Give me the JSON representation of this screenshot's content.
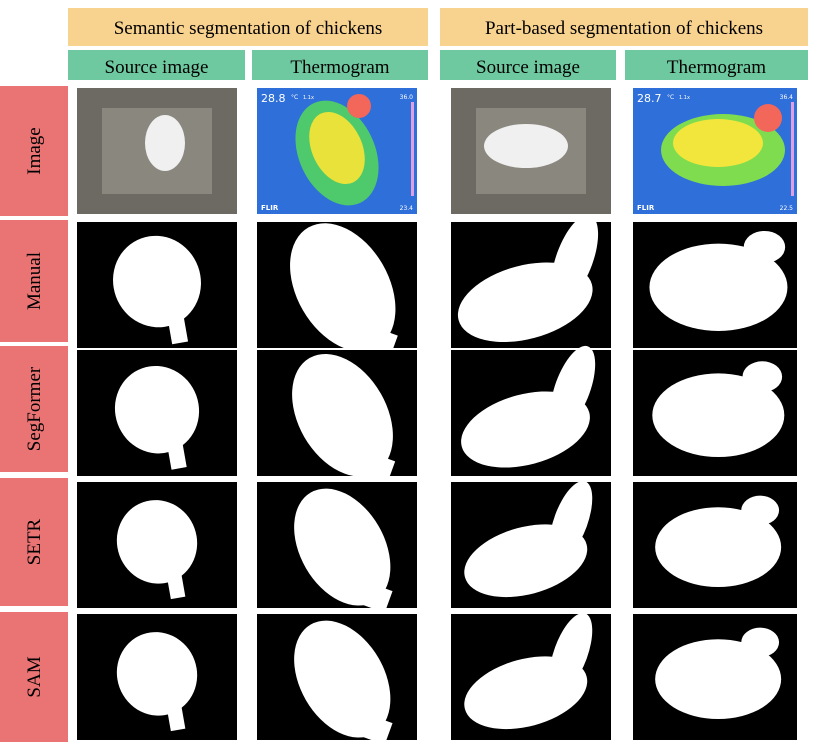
{
  "header": {
    "groups": [
      {
        "title": "Semantic segmentation of chickens",
        "columns": [
          "Source image",
          "Thermogram"
        ]
      },
      {
        "title": "Part-based segmentation of chickens",
        "columns": [
          "Source image",
          "Thermogram"
        ]
      }
    ]
  },
  "rows": [
    "Image",
    "Manual",
    "SegFormer",
    "SETR",
    "SAM"
  ],
  "thermograms": [
    {
      "temp": "28.8",
      "unit": "°C",
      "zoom": "1.1x",
      "max": "36.0",
      "min": "23.4",
      "brand": "FLIR"
    },
    {
      "temp": "28.7",
      "unit": "°C",
      "zoom": "1.1x",
      "max": "36.4",
      "min": "22.5",
      "brand": "FLIR"
    }
  ]
}
